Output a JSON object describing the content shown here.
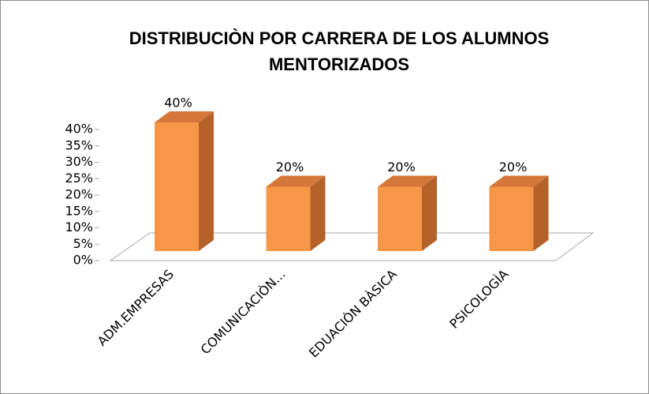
{
  "chart_data": {
    "type": "bar3d",
    "title": "DISTRIBUCIÒN POR CARRERA DE LOS ALUMNOS MENTORIZADOS",
    "categories": [
      "ADM.EMPRESAS",
      "COMUNICACIÒN...",
      "EDUACIÒN BÀSICA",
      "PSICOLOGÌA"
    ],
    "values": [
      40,
      20,
      20,
      20
    ],
    "value_labels": [
      "40%",
      "20%",
      "20%",
      "20%"
    ],
    "color": "#f79646",
    "ylim": [
      0,
      40
    ],
    "yticks": [
      {
        "value": 0,
        "label": "0%"
      },
      {
        "value": 5,
        "label": "5%"
      },
      {
        "value": 10,
        "label": "10%"
      },
      {
        "value": 15,
        "label": "15%"
      },
      {
        "value": 20,
        "label": "20%"
      },
      {
        "value": 25,
        "label": "25%"
      },
      {
        "value": 30,
        "label": "30%"
      },
      {
        "value": 35,
        "label": "35%"
      },
      {
        "value": 40,
        "label": "40%"
      }
    ]
  }
}
